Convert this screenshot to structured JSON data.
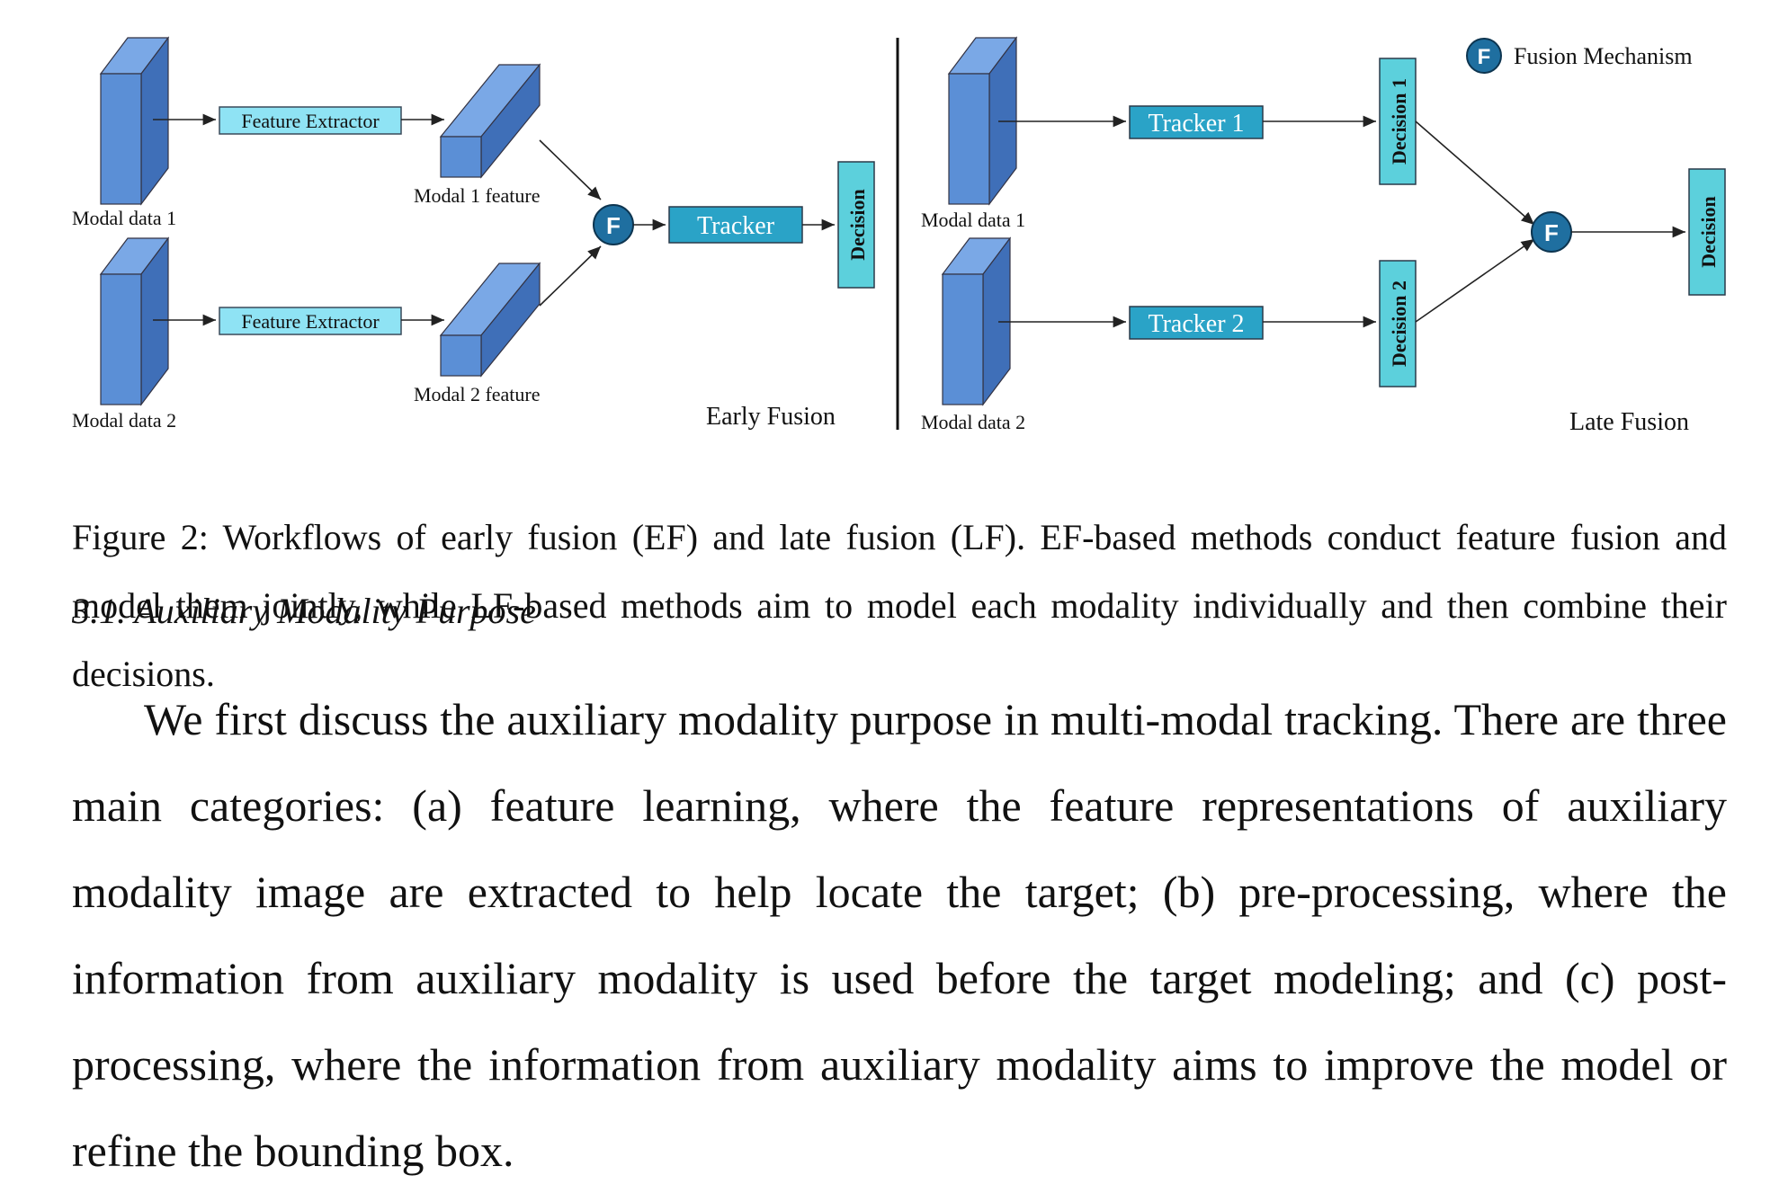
{
  "figure": {
    "legend_label": "Fusion Mechanism",
    "fusion_letter": "F",
    "early": {
      "modal_data_1": "Modal data 1",
      "modal_data_2": "Modal data 2",
      "feature_extractor_1": "Feature Extractor",
      "feature_extractor_2": "Feature Extractor",
      "modal_1_feature": "Modal 1 feature",
      "modal_2_feature": "Modal 2 feature",
      "tracker": "Tracker",
      "decision": "Decision",
      "title": "Early Fusion"
    },
    "late": {
      "modal_data_1": "Modal data 1",
      "modal_data_2": "Modal data 2",
      "tracker_1": "Tracker 1",
      "tracker_2": "Tracker 2",
      "decision_1": "Decision 1",
      "decision_2": "Decision 2",
      "decision": "Decision",
      "title": "Late Fusion"
    },
    "colors": {
      "cube_front": "#5b8fd6",
      "cube_side": "#3f6fb8",
      "cube_top": "#7aa8e6",
      "light_box": "#8fe3f4",
      "tracker_box": "#2aa3c7",
      "decision_box": "#5cd0dc",
      "fusion_circle": "#1f6fa0"
    }
  },
  "caption": "Figure 2: Workflows of early fusion (EF) and late fusion (LF). EF-based methods conduct feature fusion and model them jointly, while LF-based methods aim to model each modality individually and then combine their decisions.",
  "section_heading": "3.1. Auxiliary Modality Purpose",
  "paragraph": "We first discuss the auxiliary modality purpose in multi-modal tracking. There are three main categories: (a) feature learning, where the feature representations of auxiliary modality image are extracted to help locate the target; (b) pre-processing, where the information from auxiliary modality is used before the target modeling; and (c) post-processing, where the information from auxiliary modality aims to improve the model or refine the bounding box."
}
